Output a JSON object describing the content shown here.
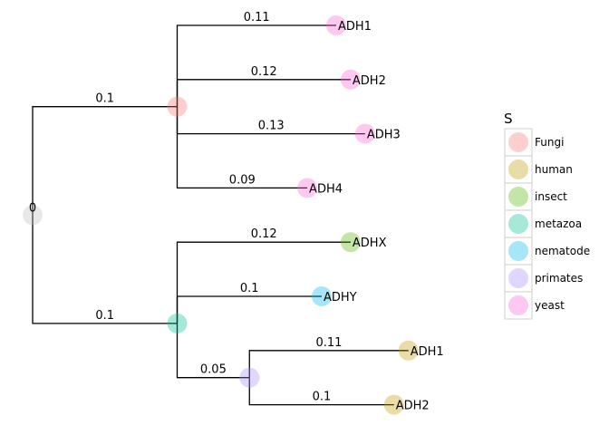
{
  "tree": {
    "root_label": "0",
    "nodes": [
      {
        "id": "root",
        "parent": null,
        "depth": 0,
        "row": 3.5,
        "group": "root"
      },
      {
        "id": "n1",
        "parent": "root",
        "depth": 0.1,
        "row": 1.5,
        "branch": "0.1",
        "group": "Fungi"
      },
      {
        "id": "n2",
        "parent": "root",
        "depth": 0.1,
        "row": 5.5,
        "branch": "0.1",
        "group": "metazoa"
      },
      {
        "id": "t1",
        "parent": "n1",
        "depth": 0.21,
        "row": 0,
        "branch": "0.11",
        "group": "yeast",
        "label": "ADH1"
      },
      {
        "id": "t2",
        "parent": "n1",
        "depth": 0.22,
        "row": 1,
        "branch": "0.12",
        "group": "yeast",
        "label": "ADH2"
      },
      {
        "id": "t3",
        "parent": "n1",
        "depth": 0.23,
        "row": 2,
        "branch": "0.13",
        "group": "yeast",
        "label": "ADH3"
      },
      {
        "id": "t4",
        "parent": "n1",
        "depth": 0.19,
        "row": 3,
        "branch": "0.09",
        "group": "yeast",
        "label": "ADH4"
      },
      {
        "id": "t5",
        "parent": "n2",
        "depth": 0.22,
        "row": 4,
        "branch": "0.12",
        "group": "insect",
        "label": "ADHX"
      },
      {
        "id": "t6",
        "parent": "n2",
        "depth": 0.2,
        "row": 5,
        "branch": "0.1",
        "group": "nematode",
        "label": "ADHY"
      },
      {
        "id": "n3",
        "parent": "n2",
        "depth": 0.15,
        "row": 6.5,
        "branch": "0.05",
        "group": "primates"
      },
      {
        "id": "t7",
        "parent": "n3",
        "depth": 0.26,
        "row": 6,
        "branch": "0.11",
        "group": "human",
        "label": "ADH1"
      },
      {
        "id": "t8",
        "parent": "n3",
        "depth": 0.25,
        "row": 7,
        "branch": "0.1",
        "group": "human",
        "label": "ADH2"
      }
    ]
  },
  "groups": {
    "root": {
      "color": "#bdbdbd"
    },
    "Fungi": {
      "color": "#F8766D"
    },
    "human": {
      "color": "#C49A00"
    },
    "insect": {
      "color": "#53B400"
    },
    "metazoa": {
      "color": "#00C094"
    },
    "nematode": {
      "color": "#00B6EB"
    },
    "primates": {
      "color": "#A58AFF"
    },
    "yeast": {
      "color": "#FB61D7"
    }
  },
  "legend": {
    "title": "S",
    "items": [
      "Fungi",
      "human",
      "insect",
      "metazoa",
      "nematode",
      "primates",
      "yeast"
    ]
  }
}
